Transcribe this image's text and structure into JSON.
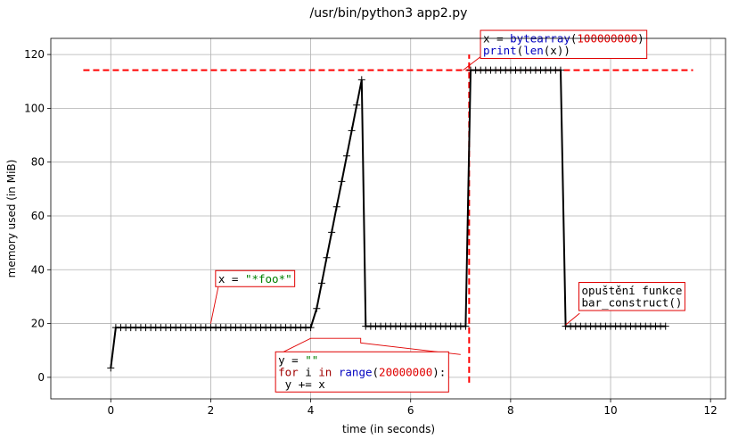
{
  "chart_data": {
    "type": "line",
    "title": "/usr/bin/python3 app2.py",
    "xlabel": "time (in seconds)",
    "ylabel": "memory used (in MiB)",
    "xlim": [
      -1.2,
      12.3
    ],
    "ylim": [
      -8,
      126
    ],
    "xticks": [
      0,
      2,
      4,
      6,
      8,
      10,
      12
    ],
    "yticks": [
      0,
      20,
      40,
      60,
      80,
      100,
      120
    ],
    "grid": true,
    "series_color": "#000000",
    "marker": "+",
    "x": [
      0.0,
      0.1,
      0.2,
      0.3,
      0.4,
      0.5,
      0.6,
      0.7,
      0.8,
      0.9,
      1.0,
      1.1,
      1.2,
      1.3,
      1.4,
      1.5,
      1.6,
      1.7,
      1.8,
      1.9,
      2.0,
      2.1,
      2.2,
      2.3,
      2.4,
      2.5,
      2.6,
      2.7,
      2.8,
      2.9,
      3.0,
      3.1,
      3.2,
      3.3,
      3.4,
      3.5,
      3.6,
      3.7,
      3.8,
      3.9,
      4.0,
      4.12,
      4.22,
      4.32,
      4.42,
      4.52,
      4.62,
      4.72,
      4.82,
      4.92,
      5.02,
      5.1,
      5.2,
      5.3,
      5.4,
      5.5,
      5.6,
      5.7,
      5.8,
      5.9,
      6.0,
      6.1,
      6.2,
      6.3,
      6.4,
      6.5,
      6.6,
      6.7,
      6.8,
      6.9,
      7.0,
      7.1,
      7.2,
      7.3,
      7.4,
      7.5,
      7.6,
      7.7,
      7.8,
      7.9,
      8.0,
      8.1,
      8.2,
      8.3,
      8.4,
      8.5,
      8.6,
      8.7,
      8.8,
      8.9,
      9.0,
      9.1,
      9.2,
      9.3,
      9.4,
      9.5,
      9.6,
      9.7,
      9.8,
      9.9,
      10.0,
      10.1,
      10.2,
      10.3,
      10.4,
      10.5,
      10.6,
      10.7,
      10.8,
      10.9,
      11.0,
      11.1
    ],
    "y": [
      3.5,
      18.5,
      18.5,
      18.5,
      18.5,
      18.5,
      18.5,
      18.5,
      18.5,
      18.5,
      18.5,
      18.5,
      18.5,
      18.5,
      18.5,
      18.5,
      18.5,
      18.5,
      18.5,
      18.5,
      18.5,
      18.5,
      18.5,
      18.5,
      18.5,
      18.5,
      18.5,
      18.5,
      18.5,
      18.5,
      18.5,
      18.5,
      18.5,
      18.5,
      18.5,
      18.5,
      18.5,
      18.5,
      18.5,
      18.5,
      18.5,
      25.6,
      35.0,
      44.5,
      53.9,
      63.4,
      72.8,
      82.3,
      91.7,
      101.2,
      110.6,
      19.0,
      19.0,
      19.0,
      19.0,
      19.0,
      19.0,
      19.0,
      19.0,
      19.0,
      19.0,
      19.0,
      19.0,
      19.0,
      19.0,
      19.0,
      19.0,
      19.0,
      19.0,
      19.0,
      19.0,
      19.0,
      114.2,
      114.2,
      114.2,
      114.2,
      114.2,
      114.2,
      114.2,
      114.2,
      114.2,
      114.2,
      114.2,
      114.2,
      114.2,
      114.2,
      114.2,
      114.2,
      114.2,
      114.2,
      114.2,
      19.0,
      19.0,
      19.0,
      19.0,
      19.0,
      19.0,
      19.0,
      19.0,
      19.0,
      19.0,
      19.0,
      19.0,
      19.0,
      19.0,
      19.0,
      19.0,
      19.0,
      19.0,
      19.0,
      19.0,
      19.0
    ],
    "reference_lines": [
      {
        "orientation": "horizontal",
        "value": 114.2,
        "from": -0.55,
        "to": 11.65,
        "color": "#ff0000"
      },
      {
        "orientation": "vertical",
        "value": 7.17,
        "from": -2,
        "to": 120,
        "color": "#ff0000"
      }
    ],
    "annotations": [
      {
        "lines": [
          [
            {
              "t": "x = ",
              "c": "#000000"
            },
            {
              "t": "\"*foo*\"",
              "c": "#008000"
            }
          ]
        ],
        "anchor": [
          2.0,
          20.0
        ],
        "text_x": 2.15,
        "text_y": 35.2,
        "leader": [
          [
            2.0,
            20.0
          ],
          [
            2.15,
            33.5
          ]
        ]
      },
      {
        "lines": [
          [
            {
              "t": "y = ",
              "c": "#000000"
            },
            {
              "t": "\"\"",
              "c": "#008000"
            }
          ],
          [
            {
              "t": "for",
              "c": "#a00000"
            },
            {
              "t": " i ",
              "c": "#000000"
            },
            {
              "t": "in",
              "c": "#a00000"
            },
            {
              "t": " ",
              "c": "#000000"
            },
            {
              "t": "range",
              "c": "#0000c0"
            },
            {
              "t": "(",
              "c": "#000000"
            },
            {
              "t": "20000000",
              "c": "#e00000"
            },
            {
              "t": "):",
              "c": "#000000"
            }
          ],
          [
            {
              "t": "    y += x",
              "c": "#000000"
            }
          ]
        ],
        "anchor": [
          4.0,
          15.0
        ],
        "text_x": 3.35,
        "text_y": 5.0,
        "leader": [
          [
            3.35,
            8.5
          ],
          [
            4.0,
            14.5
          ],
          [
            5.0,
            14.5
          ],
          [
            5.0,
            12.8
          ],
          [
            7.0,
            8.5
          ]
        ]
      },
      {
        "lines": [
          [
            {
              "t": "x = ",
              "c": "#000000"
            },
            {
              "t": "bytearray",
              "c": "#0000c0"
            },
            {
              "t": "(",
              "c": "#000000"
            },
            {
              "t": "100000000",
              "c": "#e00000"
            },
            {
              "t": ")",
              "c": "#000000"
            }
          ],
          [
            {
              "t": "print",
              "c": "#0000c0"
            },
            {
              "t": "(",
              "c": "#000000"
            },
            {
              "t": "len",
              "c": "#0000c0"
            },
            {
              "t": "(x))",
              "c": "#000000"
            }
          ]
        ],
        "anchor": [
          7.05,
          114.2
        ],
        "text_x": 7.45,
        "text_y": 124.5,
        "leader": [
          [
            7.05,
            114.2
          ],
          [
            7.42,
            119.5
          ]
        ]
      },
      {
        "lines": [
          [
            {
              "t": "opuštění funkce",
              "c": "#000000"
            }
          ],
          [
            {
              "t": "bar_construct()",
              "c": "#000000"
            }
          ]
        ],
        "anchor": [
          9.1,
          19.5
        ],
        "text_x": 9.42,
        "text_y": 30.8,
        "leader": [
          [
            9.1,
            19.5
          ],
          [
            9.38,
            23.8
          ]
        ]
      }
    ]
  }
}
